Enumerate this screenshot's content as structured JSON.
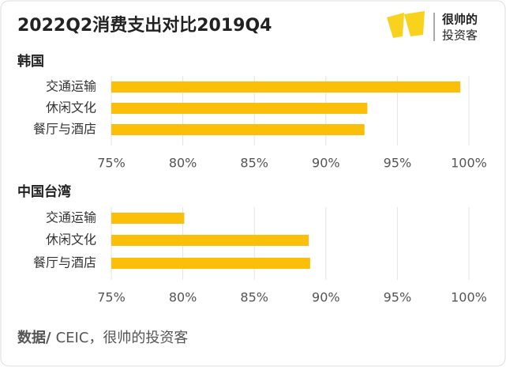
{
  "title": "2022Q2消费支出对比2019Q4",
  "logo": {
    "line1": "很帅的",
    "line2": "投资客"
  },
  "chart_data": [
    {
      "type": "bar",
      "orientation": "horizontal",
      "title": "韩国",
      "categories": [
        "交通运输",
        "休闲文化",
        "餐厅与酒店"
      ],
      "values": [
        99.4,
        92.9,
        92.7
      ],
      "color": "#fbbf0a",
      "xlim": [
        75,
        100
      ],
      "xticks": [
        {
          "value": 75,
          "label": "75%"
        },
        {
          "value": 80,
          "label": "80%"
        },
        {
          "value": 85,
          "label": "85%"
        },
        {
          "value": 90,
          "label": "90%"
        },
        {
          "value": 95,
          "label": "95%"
        },
        {
          "value": 100,
          "label": "100%"
        }
      ],
      "grid": true
    },
    {
      "type": "bar",
      "orientation": "horizontal",
      "title": "中国台湾",
      "categories": [
        "交通运输",
        "休闲文化",
        "餐厅与酒店"
      ],
      "values": [
        80.1,
        88.8,
        88.9
      ],
      "color": "#fbbf0a",
      "xlim": [
        75,
        100
      ],
      "xticks": [
        {
          "value": 75,
          "label": "75%"
        },
        {
          "value": 80,
          "label": "80%"
        },
        {
          "value": 85,
          "label": "85%"
        },
        {
          "value": 90,
          "label": "90%"
        },
        {
          "value": 95,
          "label": "95%"
        },
        {
          "value": 100,
          "label": "100%"
        }
      ],
      "grid": true
    }
  ],
  "footer": {
    "label": "数据/",
    "text": "CEIC，很帅的投资客"
  }
}
